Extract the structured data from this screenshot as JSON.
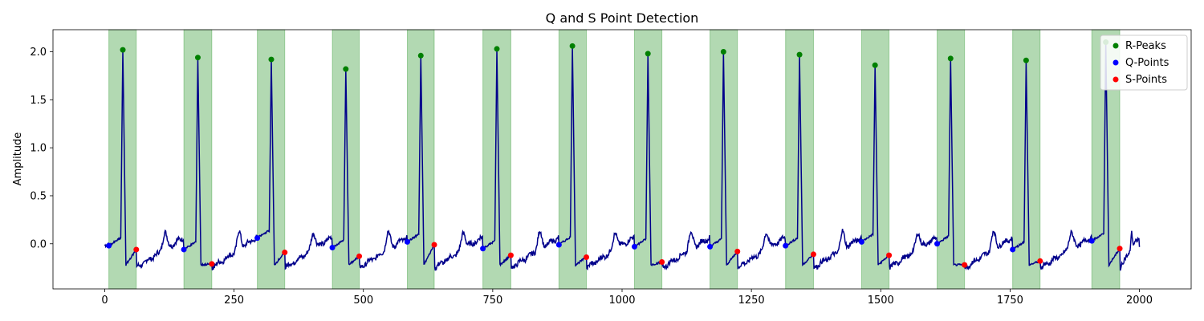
{
  "chart_data": {
    "type": "line",
    "title": "Q and S Point Detection",
    "xlabel": "",
    "ylabel": "Amplitude",
    "xlim": [
      -100,
      2100
    ],
    "ylim": [
      -0.47,
      2.23
    ],
    "xticks": [
      0,
      250,
      500,
      750,
      1000,
      1250,
      1500,
      1750,
      2000
    ],
    "yticks": [
      0.0,
      0.5,
      1.0,
      1.5,
      2.0
    ],
    "grid": false,
    "legend": {
      "placement": "top-right",
      "entries": [
        "R-Peaks",
        "Q-Points",
        "S-Points"
      ]
    },
    "colors": {
      "signal": "#00008b",
      "r_peaks": "#008000",
      "q_points": "#0000ff",
      "s_points": "#ff0000",
      "qrs_region": "#008000"
    },
    "signal_range": [
      0,
      2000
    ],
    "r_peaks": [
      {
        "x": 35,
        "y": 2.02
      },
      {
        "x": 180,
        "y": 1.94
      },
      {
        "x": 322,
        "y": 1.92
      },
      {
        "x": 466,
        "y": 1.82
      },
      {
        "x": 611,
        "y": 1.96
      },
      {
        "x": 758,
        "y": 2.03
      },
      {
        "x": 904,
        "y": 2.06
      },
      {
        "x": 1050,
        "y": 1.98
      },
      {
        "x": 1196,
        "y": 2.0
      },
      {
        "x": 1343,
        "y": 1.97
      },
      {
        "x": 1489,
        "y": 1.86
      },
      {
        "x": 1635,
        "y": 1.93
      },
      {
        "x": 1781,
        "y": 1.91
      },
      {
        "x": 1935,
        "y": 2.1
      }
    ],
    "q_points": [
      {
        "x": 8,
        "y": -0.02
      },
      {
        "x": 153,
        "y": -0.06
      },
      {
        "x": 295,
        "y": 0.06
      },
      {
        "x": 440,
        "y": -0.04
      },
      {
        "x": 585,
        "y": 0.02
      },
      {
        "x": 731,
        "y": -0.05
      },
      {
        "x": 878,
        "y": -0.01
      },
      {
        "x": 1024,
        "y": -0.03
      },
      {
        "x": 1170,
        "y": -0.03
      },
      {
        "x": 1316,
        "y": -0.02
      },
      {
        "x": 1463,
        "y": 0.02
      },
      {
        "x": 1609,
        "y": 0.0
      },
      {
        "x": 1755,
        "y": -0.06
      },
      {
        "x": 1908,
        "y": 0.03
      }
    ],
    "s_points": [
      {
        "x": 61,
        "y": -0.06
      },
      {
        "x": 207,
        "y": -0.21
      },
      {
        "x": 348,
        "y": -0.09
      },
      {
        "x": 492,
        "y": -0.13
      },
      {
        "x": 637,
        "y": -0.01
      },
      {
        "x": 785,
        "y": -0.12
      },
      {
        "x": 931,
        "y": -0.14
      },
      {
        "x": 1077,
        "y": -0.19
      },
      {
        "x": 1223,
        "y": -0.08
      },
      {
        "x": 1370,
        "y": -0.11
      },
      {
        "x": 1516,
        "y": -0.12
      },
      {
        "x": 1662,
        "y": -0.22
      },
      {
        "x": 1808,
        "y": -0.18
      },
      {
        "x": 1962,
        "y": -0.05
      }
    ],
    "qrs_regions": [
      [
        8,
        61
      ],
      [
        153,
        207
      ],
      [
        295,
        348
      ],
      [
        440,
        492
      ],
      [
        585,
        637
      ],
      [
        731,
        785
      ],
      [
        878,
        931
      ],
      [
        1024,
        1077
      ],
      [
        1170,
        1223
      ],
      [
        1316,
        1370
      ],
      [
        1463,
        1516
      ],
      [
        1609,
        1662
      ],
      [
        1755,
        1808
      ],
      [
        1908,
        1962
      ]
    ]
  }
}
